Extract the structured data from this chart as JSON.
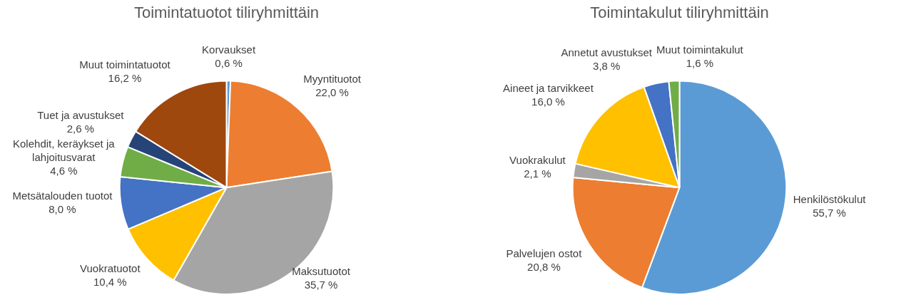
{
  "chart_data": [
    {
      "type": "pie",
      "title": "Toimintatuotot tiliryhmittäin",
      "legend": false,
      "categories": [
        "Korvaukset",
        "Myyntituotot",
        "Maksutuotot",
        "Vuokratuotot",
        "Metsätalouden tuotot",
        "Kolehdit, keräykset ja lahjoitusvarat",
        "Tuet ja avustukset",
        "Muut toimintatuotot"
      ],
      "values": [
        0.6,
        22.0,
        35.7,
        10.4,
        8.0,
        4.6,
        2.6,
        16.2
      ],
      "value_labels": [
        "0,6 %",
        "22,0 %",
        "35,7 %",
        "10,4 %",
        "8,0 %",
        "4,6 %",
        "2,6 %",
        "16,2 %"
      ],
      "colors": [
        "#5b9bd5",
        "#ed7d31",
        "#a5a5a5",
        "#ffc000",
        "#4472c4",
        "#70ad47",
        "#264478",
        "#9e480e"
      ]
    },
    {
      "type": "pie",
      "title": "Toimintakulut tiliryhmittäin",
      "legend": false,
      "categories": [
        "Henkilöstökulut",
        "Palvelujen ostot",
        "Vuokrakulut",
        "Aineet ja tarvikkeet",
        "Annetut avustukset",
        "Muut toimintakulut"
      ],
      "values": [
        55.7,
        20.8,
        2.1,
        16.0,
        3.8,
        1.6
      ],
      "value_labels": [
        "55,7 %",
        "20,8 %",
        "2,1 %",
        "16,0 %",
        "3,8 %",
        "1,6 %"
      ],
      "colors": [
        "#5b9bd5",
        "#ed7d31",
        "#a5a5a5",
        "#ffc000",
        "#4472c4",
        "#70ad47"
      ]
    }
  ]
}
